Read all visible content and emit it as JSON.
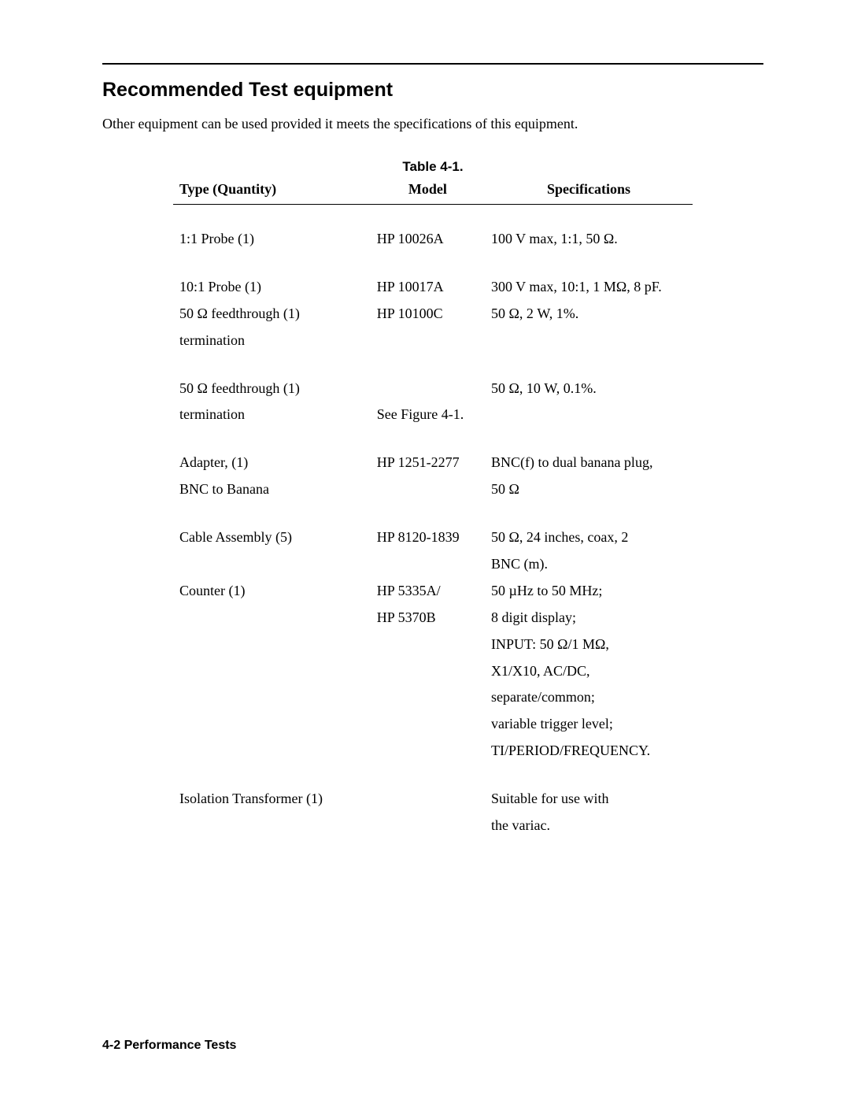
{
  "section_title": "Recommended Test equipment",
  "intro_text": "Other equipment can be used provided it meets the specifications of this equipment.",
  "table_caption": "Table 4-1.",
  "columns": {
    "type": "Type (Quantity)",
    "model": "Model",
    "spec": "Specifications"
  },
  "rows": [
    {
      "gap": true,
      "type": "1:1 Probe (1)",
      "model": "HP 10026A",
      "spec": "100 V max, 1:1, 50 Ω."
    },
    {
      "gap": true,
      "type": "10:1 Probe (1)",
      "model": "HP 10017A",
      "spec": "300 V max, 10:1, 1 MΩ, 8 pF."
    },
    {
      "gap": false,
      "type": "50 Ω feedthrough (1)",
      "model": "HP 10100C",
      "spec": "50 Ω, 2 W, 1%."
    },
    {
      "gap": false,
      "type": "termination",
      "model": "",
      "spec": ""
    },
    {
      "gap": true,
      "type": "50 Ω feedthrough (1)",
      "model": "",
      "spec": "50 Ω, 10 W, 0.1%."
    },
    {
      "gap": false,
      "type": "termination",
      "model": "See Figure 4-1.",
      "spec": ""
    },
    {
      "gap": true,
      "type": "Adapter, (1)",
      "model": "HP 1251-2277",
      "spec": "BNC(f) to dual banana plug,"
    },
    {
      "gap": false,
      "type": "BNC to Banana",
      "model": "",
      "spec": "50 Ω"
    },
    {
      "gap": true,
      "type": "Cable Assembly (5)",
      "model": "HP 8120-1839",
      "spec": "50 Ω, 24 inches, coax, 2"
    },
    {
      "gap": false,
      "type": "",
      "model": "",
      "spec": "BNC (m)."
    },
    {
      "gap": false,
      "type": "Counter (1)",
      "model": "HP 5335A/",
      "spec": "50 µHz to 50 MHz;"
    },
    {
      "gap": false,
      "type": "",
      "model": "HP 5370B",
      "spec": "8 digit display;"
    },
    {
      "gap": false,
      "type": "",
      "model": "",
      "spec": "INPUT: 50 Ω/1 MΩ,"
    },
    {
      "gap": false,
      "type": "",
      "model": "",
      "spec": "X1/X10, AC/DC,"
    },
    {
      "gap": false,
      "type": "",
      "model": "",
      "spec": "separate/common;"
    },
    {
      "gap": false,
      "type": "",
      "model": "",
      "spec": "variable trigger level;"
    },
    {
      "gap": false,
      "type": "",
      "model": "",
      "spec": "TI/PERIOD/FREQUENCY."
    },
    {
      "gap": true,
      "type": "Isolation Transformer (1)",
      "model": "",
      "spec": "Suitable for use with"
    },
    {
      "gap": false,
      "type": "",
      "model": "",
      "spec": "the variac."
    }
  ],
  "footer": "4-2  Performance Tests"
}
